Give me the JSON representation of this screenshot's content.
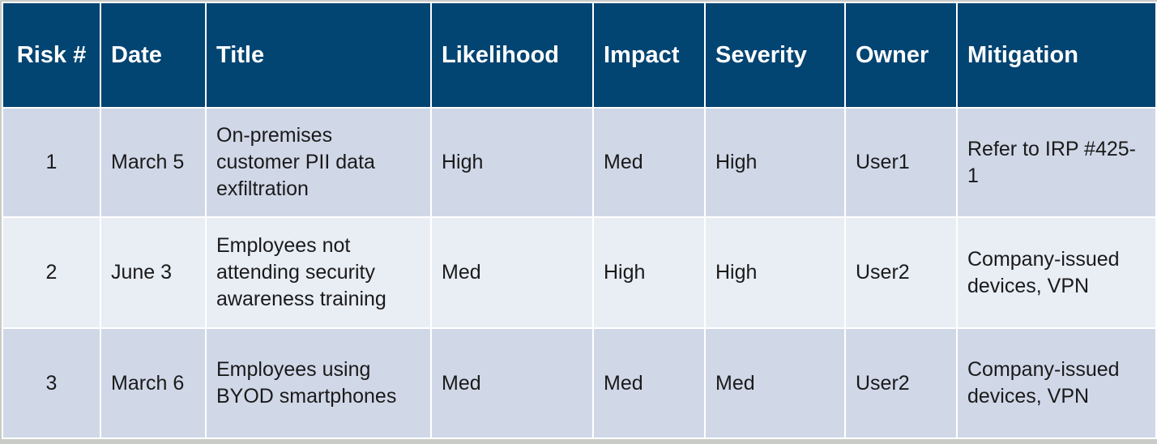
{
  "table": {
    "headers": [
      "Risk #",
      "Date",
      "Title",
      "Likelihood",
      "Impact",
      "Severity",
      "Owner",
      "Mitigation"
    ],
    "rows": [
      [
        "1",
        "March 5",
        "On-premises customer PII data exfiltration",
        "High",
        "Med",
        "High",
        "User1",
        "Refer to IRP #425-1"
      ],
      [
        "2",
        "June 3",
        "Employees not attending security awareness training",
        "Med",
        "High",
        "High",
        "User2",
        "Company-issued devices, VPN"
      ],
      [
        "3",
        "March 6",
        "Employees using BYOD smartphones",
        "Med",
        "Med",
        "Med",
        "User2",
        "Company-issued devices, VPN"
      ]
    ]
  },
  "colors": {
    "header_bg": "#024472",
    "header_text": "#ffffff",
    "row_odd_bg": "#d0d8e8",
    "row_even_bg": "#e9edf4",
    "border": "#ffffff"
  }
}
